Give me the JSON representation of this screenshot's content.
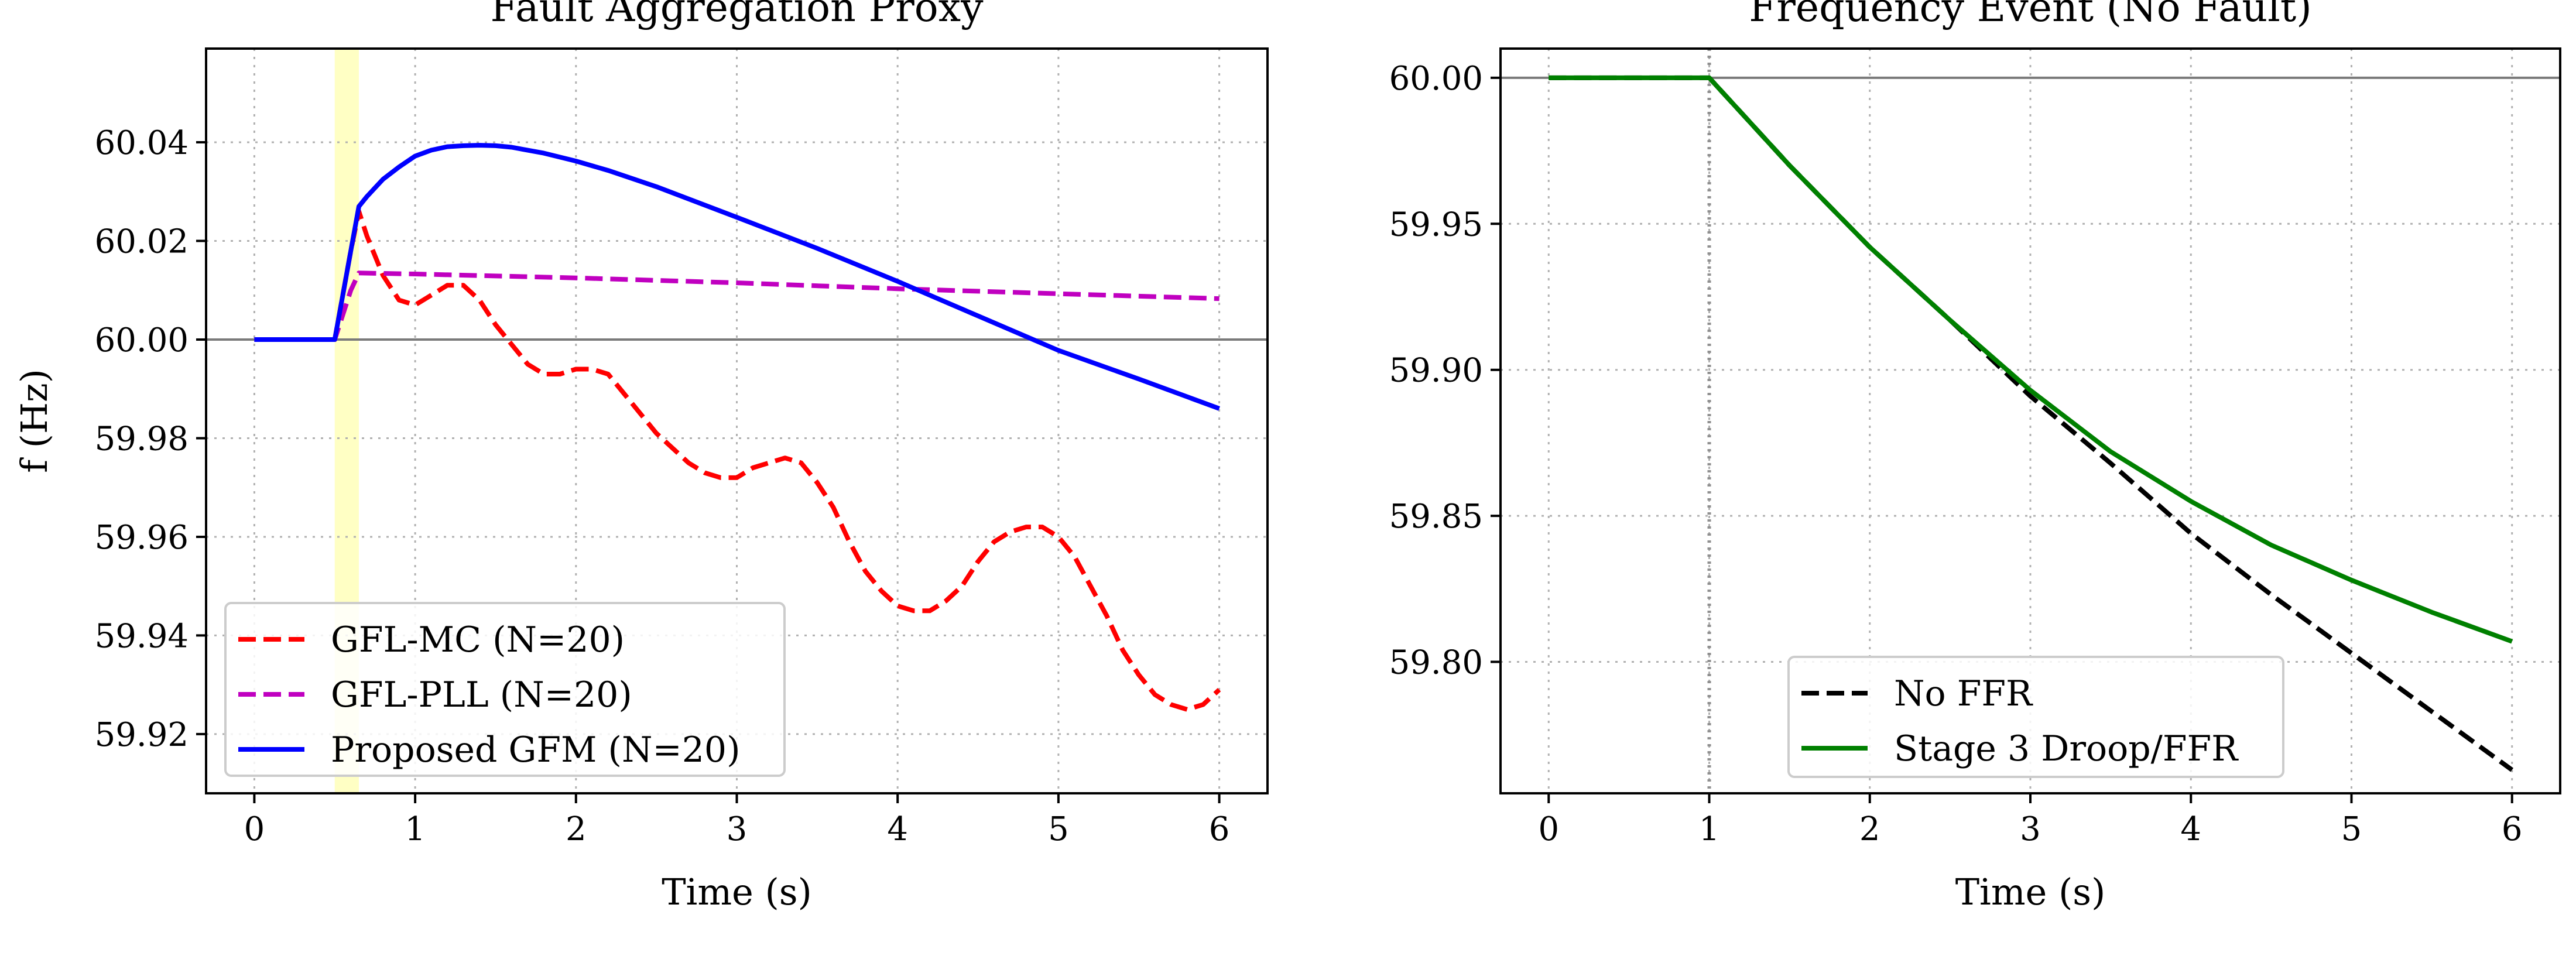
{
  "chart_data": [
    {
      "type": "line",
      "title": "Fault Aggregation Proxy",
      "xlabel": "Time (s)",
      "ylabel": "f (Hz)",
      "xlim": [
        -0.3,
        6.3
      ],
      "ylim": [
        59.908,
        60.059
      ],
      "xticks": [
        0,
        1,
        2,
        3,
        4,
        5,
        6
      ],
      "yticks": [
        59.92,
        59.94,
        59.96,
        59.98,
        60.0,
        60.02,
        60.04
      ],
      "ytick_labels": [
        "59.92",
        "59.94",
        "59.96",
        "59.98",
        "60.00",
        "60.02",
        "60.04"
      ],
      "grid": true,
      "reference_line": 60.0,
      "shaded_span": [
        0.5,
        0.65
      ],
      "shaded_color": "#ffffb0",
      "legend_loc": "lower-left",
      "series": [
        {
          "name": "GFL-MC (N=20)",
          "color": "#ff0000",
          "style": "dashed",
          "x": [
            0,
            0.5,
            0.55,
            0.6,
            0.65,
            0.7,
            0.8,
            0.9,
            1.0,
            1.1,
            1.2,
            1.3,
            1.4,
            1.5,
            1.6,
            1.7,
            1.8,
            1.9,
            2.0,
            2.1,
            2.2,
            2.3,
            2.4,
            2.5,
            2.6,
            2.7,
            2.8,
            2.9,
            3.0,
            3.1,
            3.2,
            3.3,
            3.4,
            3.5,
            3.6,
            3.7,
            3.8,
            3.9,
            4.0,
            4.1,
            4.2,
            4.3,
            4.4,
            4.5,
            4.6,
            4.7,
            4.8,
            4.9,
            5.0,
            5.1,
            5.2,
            5.3,
            5.4,
            5.5,
            5.6,
            5.7,
            5.8,
            5.9,
            6.0
          ],
          "y": [
            60.0,
            60.0,
            60.009,
            60.018,
            60.026,
            60.021,
            60.013,
            60.008,
            60.007,
            60.009,
            60.011,
            60.011,
            60.008,
            60.003,
            59.999,
            59.995,
            59.993,
            59.993,
            59.994,
            59.994,
            59.993,
            59.989,
            59.985,
            59.981,
            59.978,
            59.975,
            59.973,
            59.972,
            59.972,
            59.974,
            59.975,
            59.976,
            59.975,
            59.971,
            59.966,
            59.959,
            59.953,
            59.949,
            59.946,
            59.945,
            59.945,
            59.947,
            59.95,
            59.955,
            59.959,
            59.961,
            59.962,
            59.962,
            59.96,
            59.956,
            59.95,
            59.944,
            59.937,
            59.932,
            59.928,
            59.926,
            59.925,
            59.926,
            59.929
          ]
        },
        {
          "name": "GFL-PLL (N=20)",
          "color": "#c000c0",
          "style": "dashed",
          "x": [
            0,
            0.5,
            0.55,
            0.6,
            0.65,
            1.0,
            2.0,
            3.0,
            4.0,
            5.0,
            6.0
          ],
          "y": [
            60.0,
            60.0,
            60.005,
            60.01,
            60.0135,
            60.0133,
            60.0125,
            60.0115,
            60.0103,
            60.0093,
            60.0083
          ]
        },
        {
          "name": "Proposed GFM (N=20)",
          "color": "#0000ff",
          "style": "solid",
          "x": [
            0,
            0.5,
            0.55,
            0.6,
            0.65,
            0.7,
            0.8,
            0.9,
            1.0,
            1.1,
            1.2,
            1.3,
            1.4,
            1.5,
            1.6,
            1.8,
            2.0,
            2.2,
            2.5,
            3.0,
            3.5,
            4.0,
            4.5,
            5.0,
            5.5,
            6.0
          ],
          "y": [
            60.0,
            60.0,
            60.009,
            60.018,
            60.027,
            60.029,
            60.0325,
            60.035,
            60.0372,
            60.0384,
            60.0391,
            60.0393,
            60.0394,
            60.0393,
            60.039,
            60.0378,
            60.0362,
            60.0343,
            60.031,
            60.0248,
            60.0185,
            60.0118,
            60.0048,
            59.9978,
            59.992,
            59.986
          ]
        }
      ]
    },
    {
      "type": "line",
      "title": "Frequency Event (No Fault)",
      "xlabel": "Time (s)",
      "ylabel": "",
      "xlim": [
        -0.3,
        6.3
      ],
      "ylim": [
        59.755,
        60.01
      ],
      "xticks": [
        0,
        1,
        2,
        3,
        4,
        5,
        6
      ],
      "yticks": [
        59.8,
        59.85,
        59.9,
        59.95,
        60.0
      ],
      "ytick_labels": [
        "59.80",
        "59.85",
        "59.90",
        "59.95",
        "60.00"
      ],
      "grid": true,
      "reference_line": 60.0,
      "event_marker_x": 1.0,
      "legend_loc": "lower-center",
      "series": [
        {
          "name": "No FFR",
          "color": "#000000",
          "style": "dashed",
          "x": [
            0,
            1.0,
            1.5,
            2.0,
            2.5,
            3.0,
            3.5,
            4.0,
            4.5,
            5.0,
            5.5,
            6.0
          ],
          "y": [
            60.0,
            60.0,
            59.97,
            59.942,
            59.917,
            59.891,
            59.868,
            59.844,
            59.823,
            59.803,
            59.783,
            59.763
          ]
        },
        {
          "name": "Stage 3 Droop/FFR",
          "color": "#008000",
          "style": "solid",
          "x": [
            0,
            1.0,
            1.5,
            2.0,
            2.5,
            3.0,
            3.5,
            4.0,
            4.5,
            5.0,
            5.5,
            6.0
          ],
          "y": [
            60.0,
            60.0,
            59.97,
            59.942,
            59.917,
            59.893,
            59.872,
            59.855,
            59.84,
            59.828,
            59.817,
            59.807
          ]
        }
      ]
    }
  ]
}
